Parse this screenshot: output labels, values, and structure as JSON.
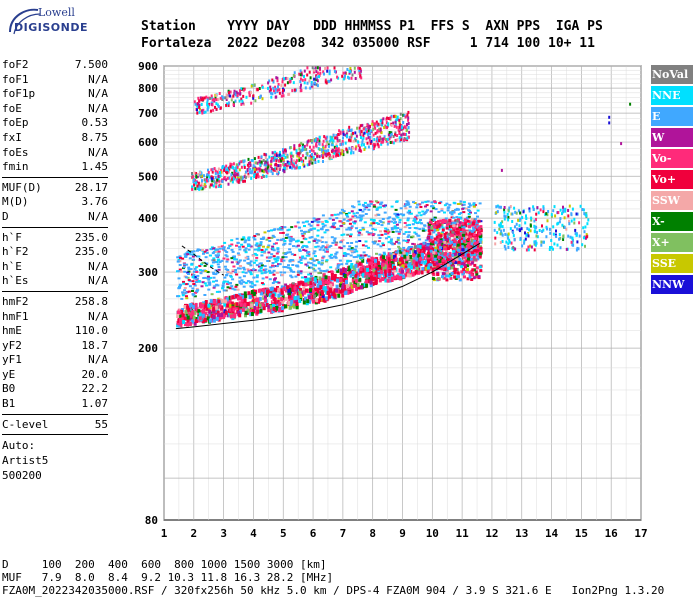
{
  "logo": {
    "line1": "Lowell",
    "line2": "DIGISONDE"
  },
  "header": {
    "labels": "Station    YYYY DAY   DDD HHMMSS P1  FFS S  AXN PPS  IGA PS",
    "values": "Fortaleza  2022 Dez08  342 035000 RSF     1 714 100 10+ 11"
  },
  "params": {
    "group1": [
      {
        "name": "foF2",
        "value": "7.500"
      },
      {
        "name": "foF1",
        "value": "N/A"
      },
      {
        "name": "foF1p",
        "value": "N/A"
      },
      {
        "name": "foE",
        "value": "N/A"
      },
      {
        "name": "foEp",
        "value": "0.53"
      },
      {
        "name": "fxI",
        "value": "8.75"
      },
      {
        "name": "foEs",
        "value": "N/A"
      },
      {
        "name": "fmin",
        "value": "1.45"
      }
    ],
    "group2": [
      {
        "name": "MUF(D)",
        "value": "28.17"
      },
      {
        "name": "M(D)",
        "value": "3.76"
      },
      {
        "name": "D",
        "value": "N/A"
      }
    ],
    "group3": [
      {
        "name": "h`F",
        "value": "235.0"
      },
      {
        "name": "h`F2",
        "value": "235.0"
      },
      {
        "name": "h`E",
        "value": "N/A"
      },
      {
        "name": "h`Es",
        "value": "N/A"
      }
    ],
    "group4": [
      {
        "name": "hmF2",
        "value": "258.8"
      },
      {
        "name": "hmF1",
        "value": "N/A"
      },
      {
        "name": "hmE",
        "value": "110.0"
      },
      {
        "name": "yF2",
        "value": "18.7"
      },
      {
        "name": "yF1",
        "value": "N/A"
      },
      {
        "name": "yE",
        "value": "20.0"
      },
      {
        "name": "B0",
        "value": "22.2"
      },
      {
        "name": "B1",
        "value": "1.07"
      }
    ],
    "group5": [
      {
        "name": "C-level",
        "value": "55"
      }
    ],
    "auto_lines": [
      "Auto:",
      "Artist5",
      "500200"
    ]
  },
  "legend": [
    {
      "label": "NoVal",
      "color": "#808080"
    },
    {
      "label": "NNE",
      "color": "#00e0ff"
    },
    {
      "label": "E",
      "color": "#40a8ff"
    },
    {
      "label": "W",
      "color": "#b0149a"
    },
    {
      "label": "Vo-",
      "color": "#ff2a7a"
    },
    {
      "label": "Vo+",
      "color": "#f0003c"
    },
    {
      "label": "SSW",
      "color": "#f4a8a8"
    },
    {
      "label": "X-",
      "color": "#008000"
    },
    {
      "label": "X+",
      "color": "#80c060"
    },
    {
      "label": "SSE",
      "color": "#c8c800"
    },
    {
      "label": "NNW",
      "color": "#1a10d8"
    }
  ],
  "footer": {
    "line1": "D     100  200  400  600  800 1000 1500 3000 [km]",
    "line2": "MUF   7.9  8.0  8.4  9.2 10.3 11.8 16.3 28.2 [MHz]",
    "line3": "FZA0M_2022342035000.RSF / 320fx256h 50 kHz 5.0 km / DPS-4 FZA0M 904 / 3.9 S 321.6 E   Ion2Png 1.3.20"
  },
  "chart_data": {
    "type": "scatter",
    "title": "",
    "xlabel": "",
    "ylabel": "",
    "xlim": [
      1,
      17
    ],
    "ylim": [
      80,
      900
    ],
    "x_ticks": [
      "1",
      "2",
      "3",
      "4",
      "5",
      "6",
      "7",
      "8",
      "9",
      "10",
      "11",
      "12",
      "13",
      "14",
      "15",
      "16",
      "17"
    ],
    "y_ticks": [
      "80",
      "200",
      "300",
      "400",
      "500",
      "600",
      "700",
      "800",
      "900"
    ],
    "grid": true,
    "y_scale": "log",
    "traces": [
      {
        "name": "O-trace",
        "x": [
          1.4,
          2.0,
          3.0,
          4.0,
          5.0,
          6.0,
          7.0,
          7.5,
          8.0,
          9.0,
          10.0,
          11.0,
          11.6
        ],
        "y": [
          240,
          243,
          250,
          258,
          265,
          275,
          288,
          300,
          305,
          318,
          332,
          345,
          355
        ]
      },
      {
        "name": "second-hop",
        "x": [
          1.9,
          3,
          4,
          5,
          6,
          7,
          8,
          9
        ],
        "y": [
          480,
          495,
          515,
          535,
          560,
          590,
          610,
          640
        ]
      },
      {
        "name": "third-hop",
        "x": [
          2.0,
          3,
          4,
          5,
          6,
          7
        ],
        "y": [
          720,
          740,
          770,
          800,
          840,
          880
        ]
      }
    ],
    "profile_curves": [
      {
        "x": [
          1.4,
          2,
          3,
          4,
          5,
          6,
          7,
          8,
          9,
          10,
          11,
          11.6
        ],
        "y": [
          222,
          224,
          228,
          232,
          237,
          244,
          252,
          263,
          278,
          300,
          330,
          350
        ]
      },
      {
        "x": [
          1.6,
          2,
          2.5,
          3
        ],
        "y": [
          345,
          330,
          310,
          295
        ]
      }
    ]
  }
}
